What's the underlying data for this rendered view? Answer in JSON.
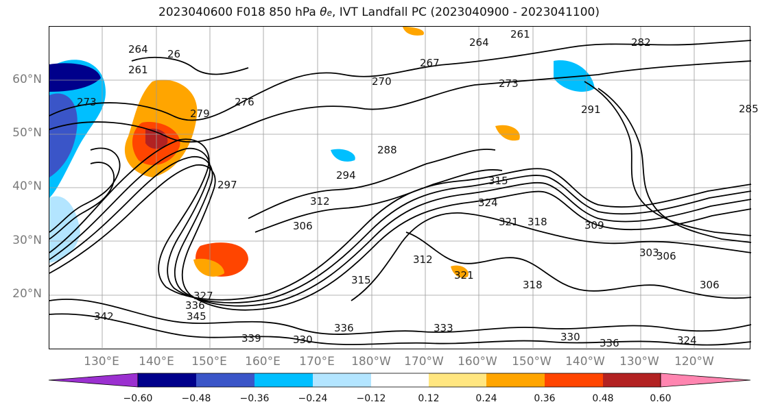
{
  "title": {
    "prefix": "2023040600 F018 850 hPa ",
    "theta_symbol": "θ",
    "theta_sub": "e",
    "suffix": ", IVT Landfall PC (2023040900 - 2023041100)"
  },
  "lat_labels": [
    "60°N",
    "50°N",
    "40°N",
    "30°N",
    "20°N"
  ],
  "lon_labels": [
    "130°E",
    "140°E",
    "150°E",
    "160°E",
    "170°E",
    "180°W",
    "170°W",
    "160°W",
    "150°W",
    "140°W",
    "130°W",
    "120°W"
  ],
  "colorbar": {
    "ticks": [
      "−0.60",
      "−0.48",
      "−0.36",
      "−0.24",
      "−0.12",
      "0.12",
      "0.24",
      "0.36",
      "0.48",
      "0.60"
    ],
    "colors": [
      "#9b30d0",
      "#00008b",
      "#3a55c8",
      "#00bfff",
      "#b3e5ff",
      "#ffffff",
      "#ffe680",
      "#ffa500",
      "#ff4500",
      "#b22222",
      "#ff85b0"
    ]
  },
  "contour_labels": [
    "264",
    "261",
    "26",
    "273",
    "279",
    "276",
    "270",
    "267",
    "264",
    "261",
    "282",
    "273",
    "291",
    "285",
    "288",
    "294",
    "297",
    "306",
    "312",
    "315",
    "324",
    "321",
    "318",
    "309",
    "303",
    "306",
    "306",
    "312",
    "321",
    "315",
    "318",
    "327",
    "336",
    "345",
    "342",
    "339",
    "330",
    "336",
    "333",
    "330",
    "336",
    "324"
  ]
}
